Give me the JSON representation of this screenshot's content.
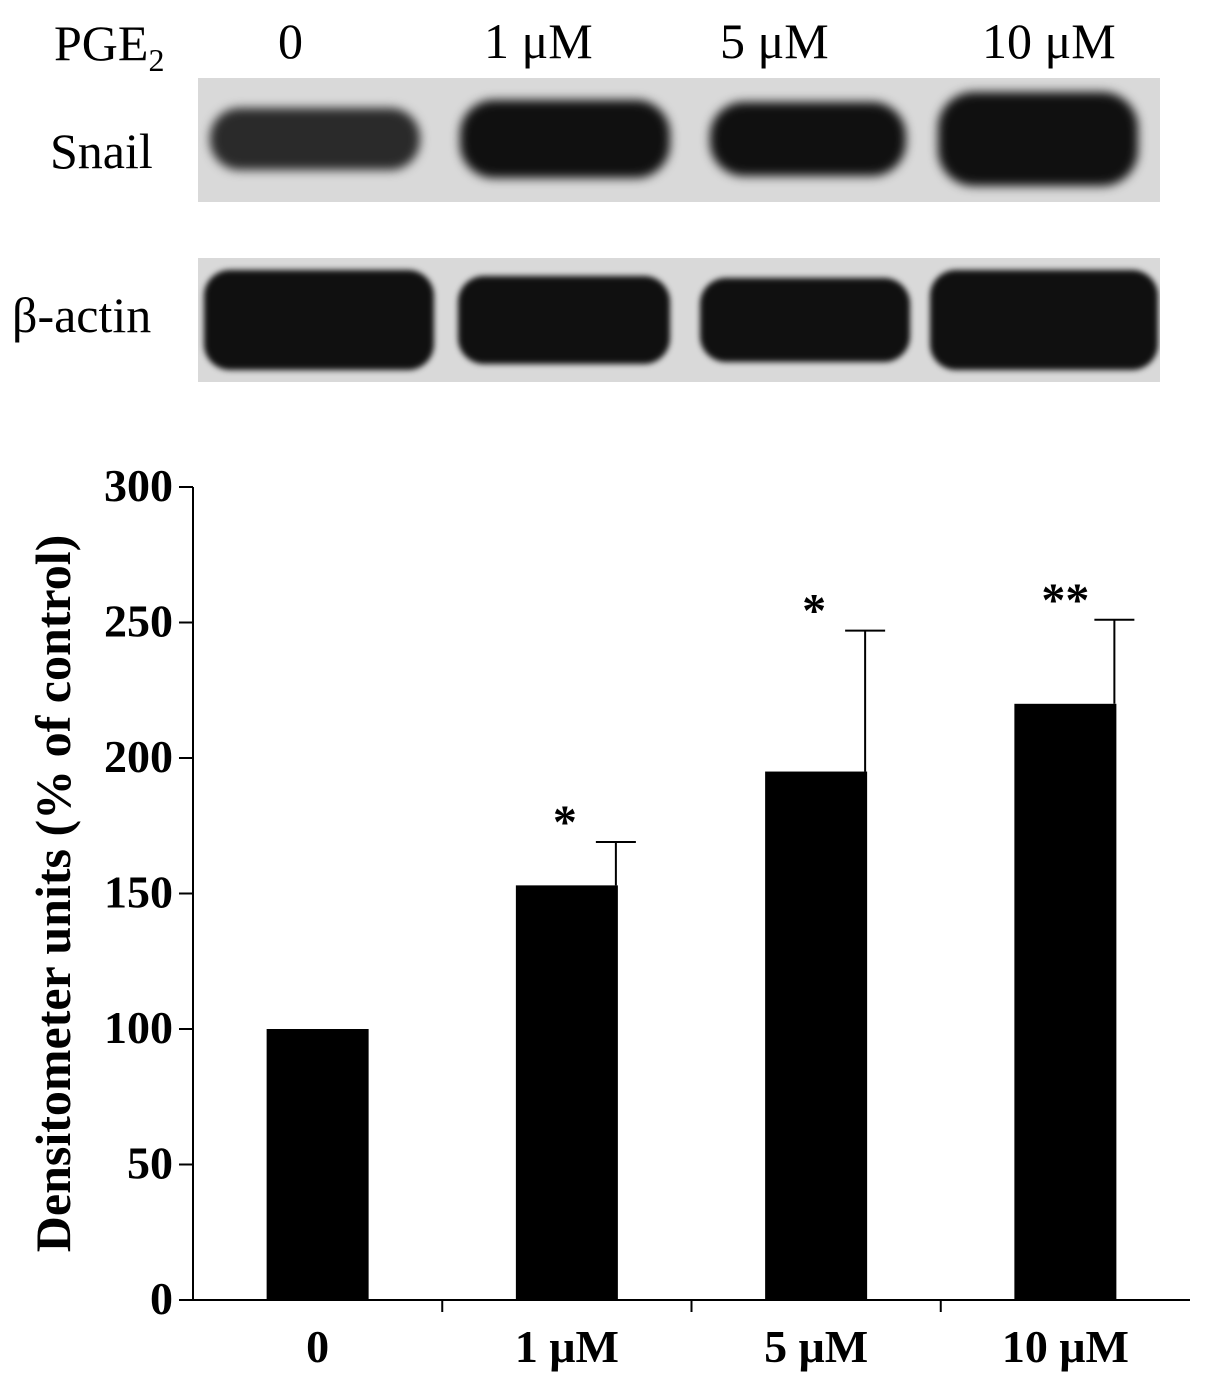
{
  "blot": {
    "treatment_label": "PGE",
    "treatment_subscript": "2",
    "lanes": [
      "0",
      "1 μM",
      "5 μM",
      "10 μM"
    ],
    "rows": [
      "Snail",
      "β-actin"
    ]
  },
  "chart_data": {
    "type": "bar",
    "categories": [
      "0",
      "1 μM",
      "5 μM",
      "10 μM"
    ],
    "values": [
      100,
      153,
      195,
      220
    ],
    "error_bars": [
      0,
      16,
      52,
      31
    ],
    "significance": [
      "",
      "*",
      "*",
      "**"
    ],
    "title": "",
    "xlabel": "",
    "ylabel": "Densitometer units (% of control)",
    "ylim": [
      0,
      300
    ],
    "yticks": [
      0,
      50,
      100,
      150,
      200,
      250,
      300
    ],
    "bar_color": "#000000",
    "grid": false
  }
}
